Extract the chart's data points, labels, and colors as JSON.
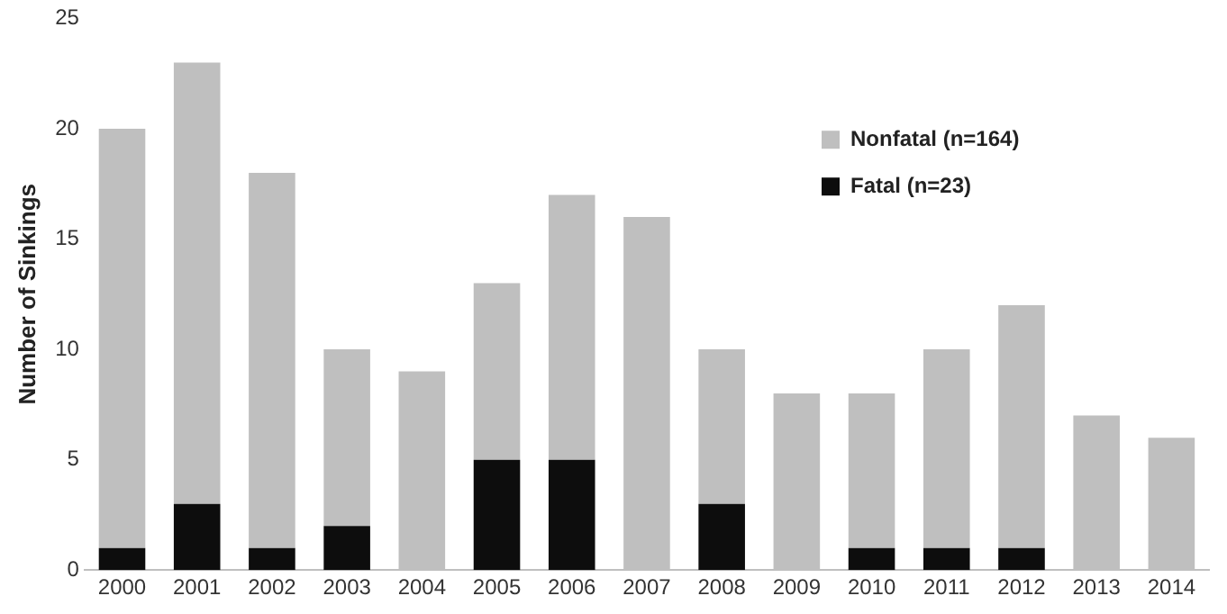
{
  "chart_data": {
    "type": "bar",
    "stacked": true,
    "ylabel": "Number of Sinkings",
    "categories": [
      "2000",
      "2001",
      "2002",
      "2003",
      "2004",
      "2005",
      "2006",
      "2007",
      "2008",
      "2009",
      "2010",
      "2011",
      "2012",
      "2013",
      "2014"
    ],
    "series": [
      {
        "name": "Fatal (n=23)",
        "color": "#0d0d0d",
        "values": [
          1,
          3,
          1,
          2,
          0,
          5,
          5,
          0,
          3,
          0,
          1,
          1,
          1,
          0,
          0
        ]
      },
      {
        "name": "Nonfatal (n=164)",
        "color": "#bfbfbf",
        "values": [
          19,
          20,
          17,
          8,
          9,
          8,
          12,
          16,
          7,
          8,
          7,
          9,
          11,
          7,
          6
        ]
      }
    ],
    "ylim": [
      0,
      25
    ],
    "yticks": [
      0,
      5,
      10,
      15,
      20,
      25
    ],
    "grid": false,
    "legend": "top right"
  }
}
